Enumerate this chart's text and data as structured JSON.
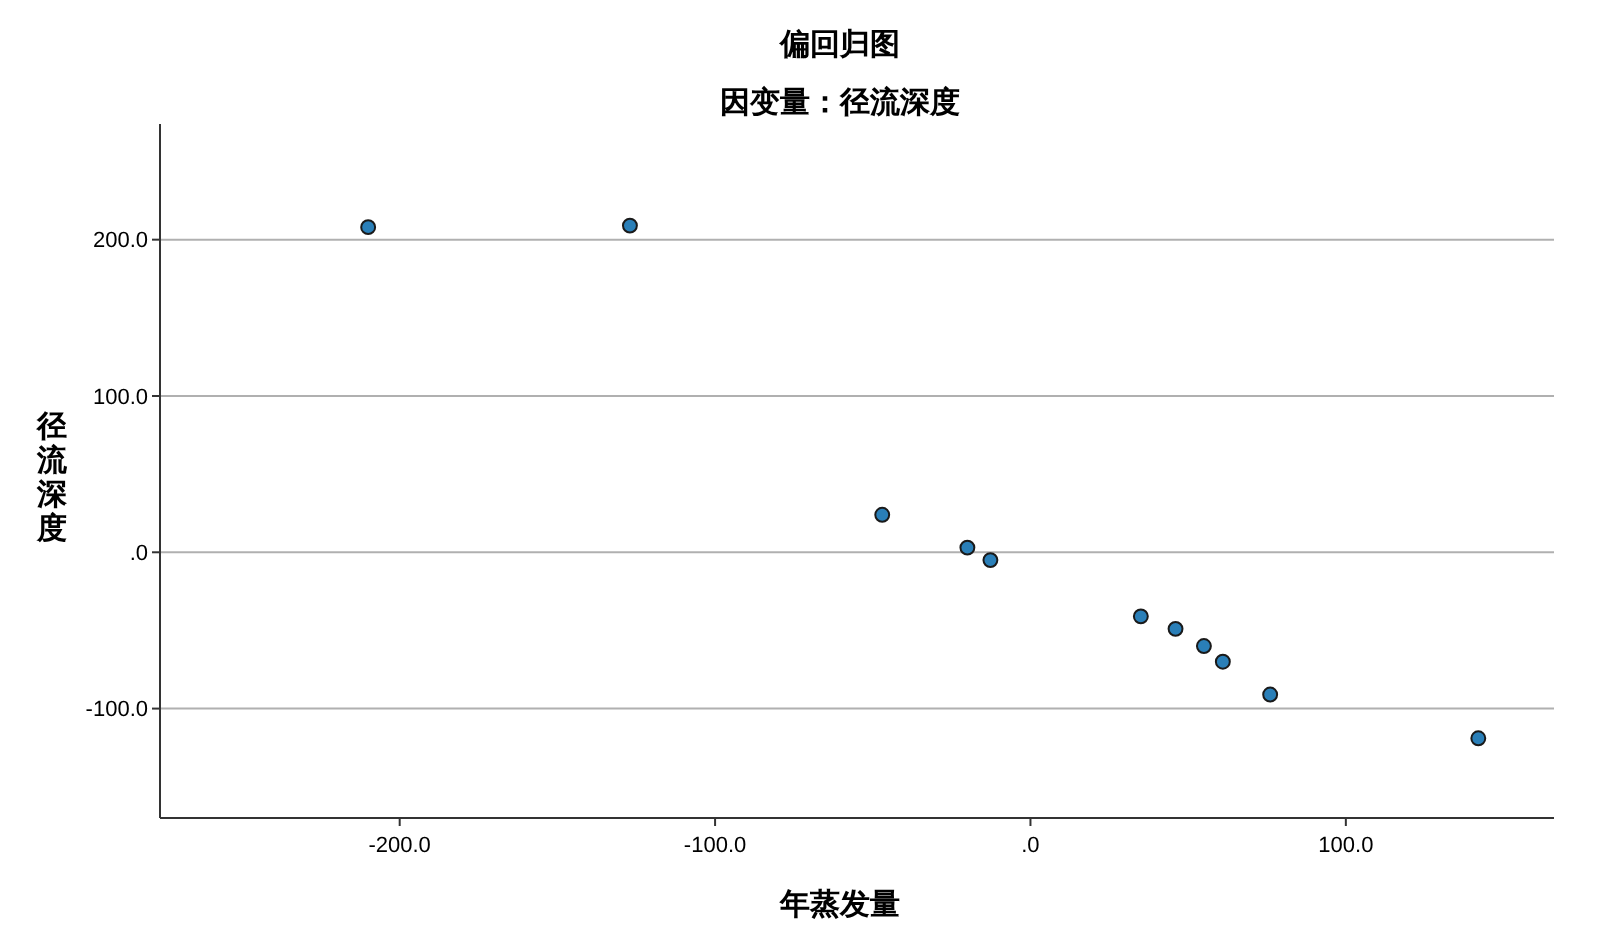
{
  "chart_data": {
    "type": "scatter",
    "title": "偏回归图",
    "subtitle": "因变量：径流深度",
    "xlabel": "年蒸发量",
    "ylabel": "径流深度",
    "x": [
      -210,
      -127,
      -47,
      -20,
      -12.7,
      35,
      46,
      55,
      61,
      76,
      142
    ],
    "values": [
      208,
      209,
      24,
      3,
      -5,
      -41,
      -49,
      -60,
      -70,
      -91,
      -119
    ],
    "color": "#2a7fb8",
    "marker": "circle",
    "grid": "y",
    "xlim": [
      -276,
      166
    ],
    "ylim": [
      -170,
      274
    ],
    "xticks": [
      {
        "value": -200,
        "label": "-200.0"
      },
      {
        "value": -100,
        "label": "-100.0"
      },
      {
        "value": 0,
        "label": ".0"
      },
      {
        "value": 100,
        "label": "100.0"
      }
    ],
    "yticks": [
      {
        "value": -100,
        "label": "-100.0"
      },
      {
        "value": 0,
        "label": ".0"
      },
      {
        "value": 100,
        "label": "100.0"
      },
      {
        "value": 200,
        "label": "200.0"
      }
    ]
  }
}
